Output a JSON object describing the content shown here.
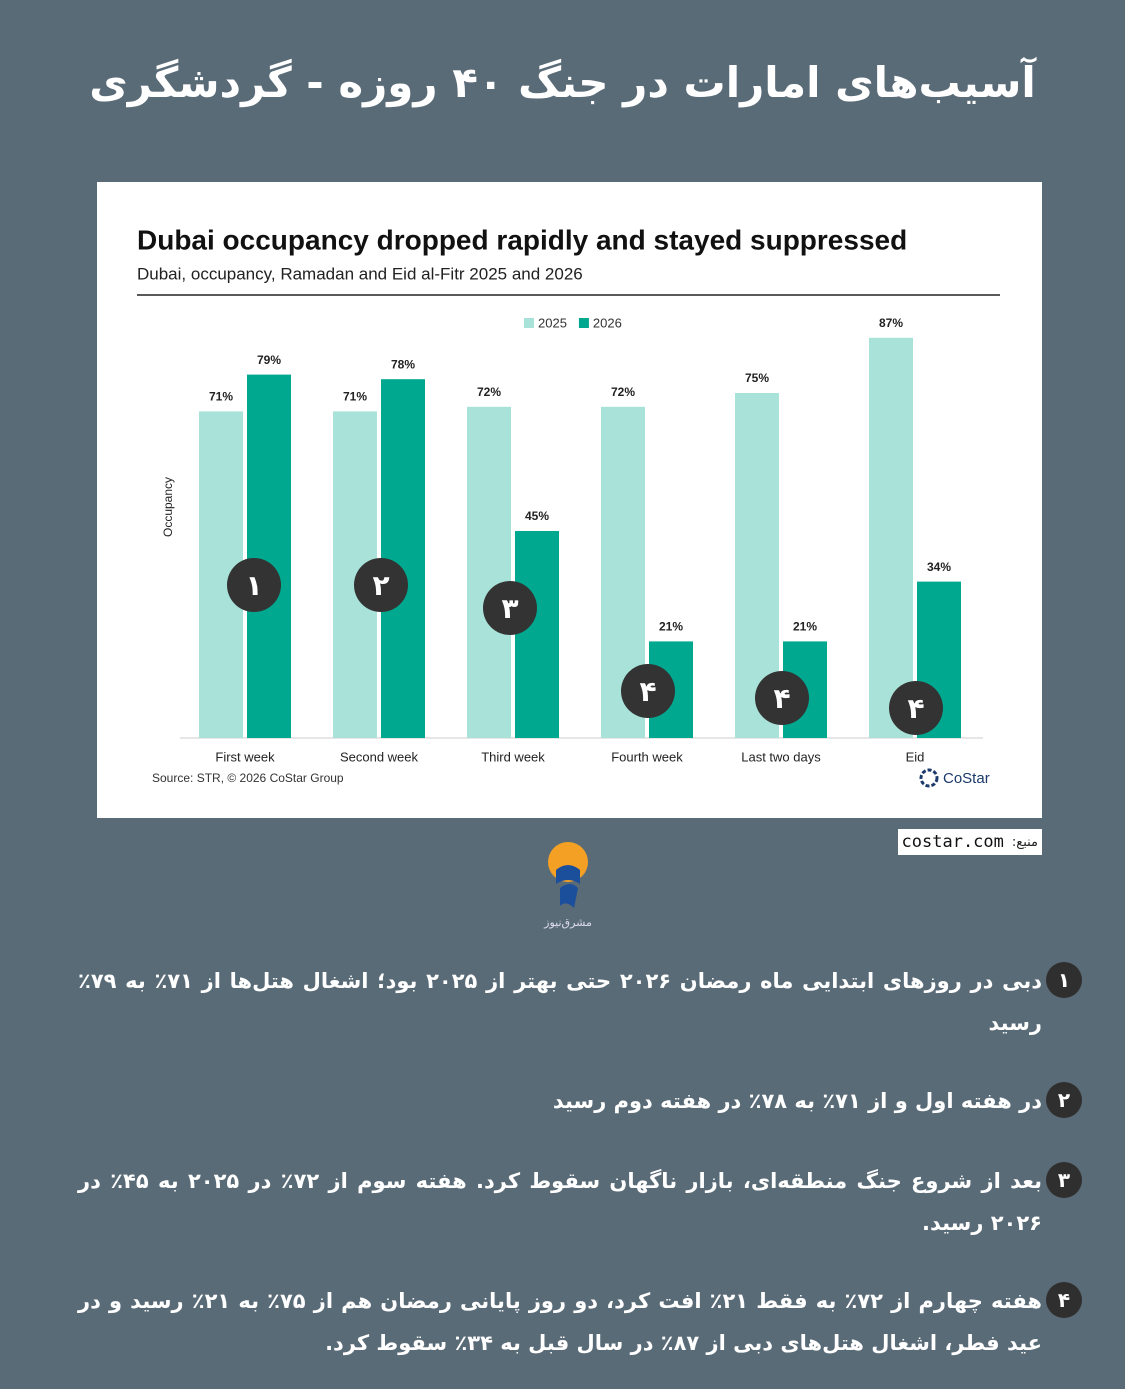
{
  "header": {
    "title": "آسیب‌های امارات در جنگ ۴۰ روزه - گردشگری"
  },
  "chart_data": {
    "type": "bar",
    "title": "Dubai occupancy dropped rapidly and stayed suppressed",
    "subtitle": "Dubai, occupancy, Ramadan and Eid al-Fitr 2025 and 2026",
    "y_label": "Occupancy",
    "categories": [
      "First week",
      "Second week",
      "Third week",
      "Fourth week",
      "Last two days",
      "Eid"
    ],
    "series": [
      {
        "name": "2025",
        "color": "#a8e2d9",
        "values": [
          71,
          71,
          72,
          72,
          75,
          87
        ],
        "value_labels": [
          "71%",
          "71%",
          "72%",
          "72%",
          "75%",
          "87%"
        ]
      },
      {
        "name": "2026",
        "color": "#00a88f",
        "values": [
          79,
          78,
          45,
          21,
          21,
          34
        ],
        "value_labels": [
          "79%",
          "78%",
          "45%",
          "21%",
          "21%",
          "34%"
        ]
      }
    ],
    "annotations": [
      "۱",
      "۲",
      "۳",
      "۴",
      "۴",
      "۴"
    ],
    "legend": "top",
    "source": "Source: STR, © 2026 CoStar Group",
    "brand": "CoStar"
  },
  "source_row": {
    "label": "منبع:",
    "url": "costar.com"
  },
  "logo": {
    "text": "مشرق‌نیوز"
  },
  "notes": [
    {
      "number": "۱",
      "text": "دبی در روزهای ابتدایی ماه رمضان ۲۰۲۶ حتی بهتر از ۲۰۲۵ بود؛ اشغال هتل‌ها از ۷۱٪ به ۷۹٪ رسید"
    },
    {
      "number": "۲",
      "text": "در هفته اول و از ۷۱٪ به ۷۸٪ در هفته دوم رسید"
    },
    {
      "number": "۳",
      "text": "بعد از شروع جنگ منطقه‌ای، بازار ناگهان سقوط کرد. هفته سوم از ۷۲٪ در ۲۰۲۵ به ۴۵٪ در ۲۰۲۶ رسید."
    },
    {
      "number": "۴",
      "text": "هفته چهارم از ۷۲٪ به فقط ۲۱٪ افت کرد، دو روز پایانی رمضان هم از ۷۵٪ به ۲۱٪ رسید و در عید فطر، اشغال هتل‌های دبی از ۸۷٪ در سال قبل به ۳۴٪ سقوط کرد."
    }
  ]
}
